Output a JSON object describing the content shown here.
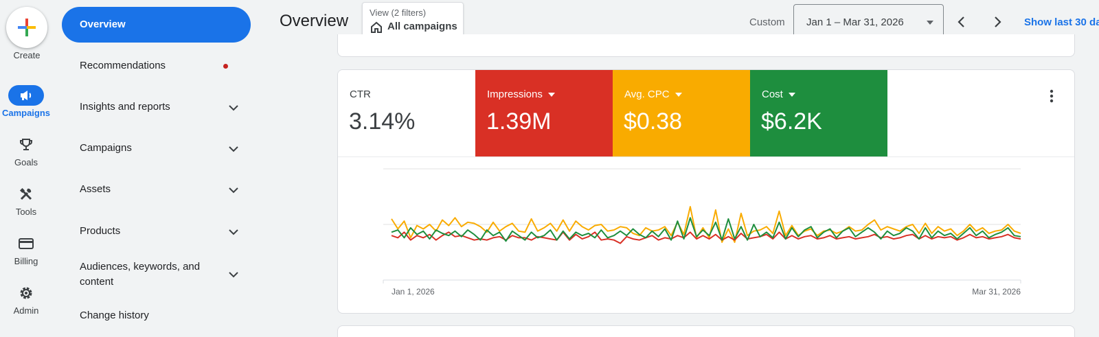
{
  "rail": {
    "create_label": "Create",
    "items": [
      {
        "label": "Campaigns",
        "icon": "megaphone-icon",
        "active": true
      },
      {
        "label": "Goals",
        "icon": "trophy-icon",
        "active": false
      },
      {
        "label": "Tools",
        "icon": "tools-icon",
        "active": false
      },
      {
        "label": "Billing",
        "icon": "credit-card-icon",
        "active": false
      },
      {
        "label": "Admin",
        "icon": "gear-icon",
        "active": false
      }
    ]
  },
  "nav": {
    "active": "Overview",
    "recommendations": "Recommendations",
    "insights": "Insights and reports",
    "campaigns": "Campaigns",
    "assets": "Assets",
    "products": "Products",
    "audiences_line1": "Audiences, keywords, and",
    "audiences_line2": "content",
    "change_history": "Change history"
  },
  "header": {
    "title": "Overview",
    "view_sub": "View (2 filters)",
    "view_main": "All campaigns",
    "custom": "Custom",
    "date_range": "Jan 1 – Mar 31, 2026",
    "show_last": "Show last 30 da"
  },
  "metrics": [
    {
      "label": "CTR",
      "value": "3.14%",
      "color": "#ffffff",
      "has_dropdown": false
    },
    {
      "label": "Impressions",
      "value": "1.39M",
      "color": "#d93025",
      "has_dropdown": true
    },
    {
      "label": "Avg. CPC",
      "value": "$0.38",
      "color": "#f9ab00",
      "has_dropdown": true
    },
    {
      "label": "Cost",
      "value": "$6.2K",
      "color": "#1e8e3e",
      "has_dropdown": true
    }
  ],
  "chart_data": {
    "type": "line",
    "x_start_label": "Jan 1, 2026",
    "x_end_label": "Mar 31, 2026",
    "grid": true,
    "yaxis_labels": false,
    "series": [
      {
        "color": "#f9ab00",
        "values": [
          0.55,
          0.46,
          0.53,
          0.38,
          0.49,
          0.46,
          0.5,
          0.44,
          0.54,
          0.49,
          0.56,
          0.48,
          0.52,
          0.51,
          0.48,
          0.43,
          0.52,
          0.44,
          0.48,
          0.51,
          0.44,
          0.43,
          0.55,
          0.44,
          0.47,
          0.51,
          0.44,
          0.54,
          0.44,
          0.53,
          0.48,
          0.45,
          0.49,
          0.5,
          0.44,
          0.45,
          0.48,
          0.47,
          0.42,
          0.4,
          0.47,
          0.44,
          0.45,
          0.48,
          0.4,
          0.52,
          0.41,
          0.66,
          0.38,
          0.47,
          0.38,
          0.63,
          0.34,
          0.46,
          0.34,
          0.6,
          0.4,
          0.44,
          0.45,
          0.48,
          0.42,
          0.62,
          0.4,
          0.49,
          0.4,
          0.44,
          0.46,
          0.4,
          0.44,
          0.45,
          0.42,
          0.44,
          0.48,
          0.44,
          0.45,
          0.5,
          0.54,
          0.45,
          0.48,
          0.46,
          0.44,
          0.48,
          0.5,
          0.42,
          0.51,
          0.42,
          0.48,
          0.44,
          0.46,
          0.4,
          0.44,
          0.5,
          0.44,
          0.47,
          0.42,
          0.44,
          0.45,
          0.5,
          0.44,
          0.42
        ]
      },
      {
        "color": "#d93025",
        "values": [
          0.4,
          0.38,
          0.43,
          0.36,
          0.4,
          0.38,
          0.41,
          0.36,
          0.4,
          0.43,
          0.39,
          0.4,
          0.38,
          0.36,
          0.37,
          0.36,
          0.38,
          0.39,
          0.36,
          0.4,
          0.38,
          0.38,
          0.36,
          0.39,
          0.38,
          0.37,
          0.36,
          0.43,
          0.36,
          0.41,
          0.37,
          0.39,
          0.43,
          0.36,
          0.37,
          0.36,
          0.33,
          0.39,
          0.37,
          0.36,
          0.38,
          0.4,
          0.36,
          0.38,
          0.37,
          0.4,
          0.38,
          0.43,
          0.37,
          0.4,
          0.37,
          0.41,
          0.36,
          0.39,
          0.36,
          0.42,
          0.37,
          0.38,
          0.39,
          0.41,
          0.37,
          0.43,
          0.37,
          0.4,
          0.37,
          0.39,
          0.4,
          0.37,
          0.38,
          0.4,
          0.37,
          0.38,
          0.39,
          0.37,
          0.38,
          0.39,
          0.41,
          0.38,
          0.39,
          0.37,
          0.38,
          0.4,
          0.41,
          0.37,
          0.4,
          0.37,
          0.39,
          0.38,
          0.39,
          0.36,
          0.38,
          0.41,
          0.38,
          0.39,
          0.37,
          0.38,
          0.39,
          0.41,
          0.38,
          0.37
        ]
      },
      {
        "color": "#1e8e3e",
        "values": [
          0.43,
          0.45,
          0.38,
          0.47,
          0.41,
          0.44,
          0.37,
          0.45,
          0.42,
          0.4,
          0.44,
          0.39,
          0.45,
          0.41,
          0.36,
          0.45,
          0.4,
          0.43,
          0.35,
          0.44,
          0.4,
          0.36,
          0.43,
          0.38,
          0.4,
          0.45,
          0.36,
          0.44,
          0.37,
          0.43,
          0.4,
          0.42,
          0.38,
          0.45,
          0.38,
          0.4,
          0.44,
          0.4,
          0.46,
          0.41,
          0.38,
          0.44,
          0.39,
          0.46,
          0.36,
          0.53,
          0.37,
          0.56,
          0.39,
          0.45,
          0.4,
          0.52,
          0.36,
          0.55,
          0.37,
          0.48,
          0.36,
          0.5,
          0.39,
          0.43,
          0.38,
          0.52,
          0.37,
          0.47,
          0.39,
          0.45,
          0.48,
          0.38,
          0.43,
          0.46,
          0.38,
          0.44,
          0.47,
          0.39,
          0.43,
          0.47,
          0.43,
          0.37,
          0.44,
          0.4,
          0.42,
          0.47,
          0.44,
          0.37,
          0.47,
          0.38,
          0.44,
          0.4,
          0.42,
          0.37,
          0.42,
          0.47,
          0.4,
          0.44,
          0.38,
          0.41,
          0.43,
          0.47,
          0.4,
          0.39
        ]
      }
    ]
  }
}
